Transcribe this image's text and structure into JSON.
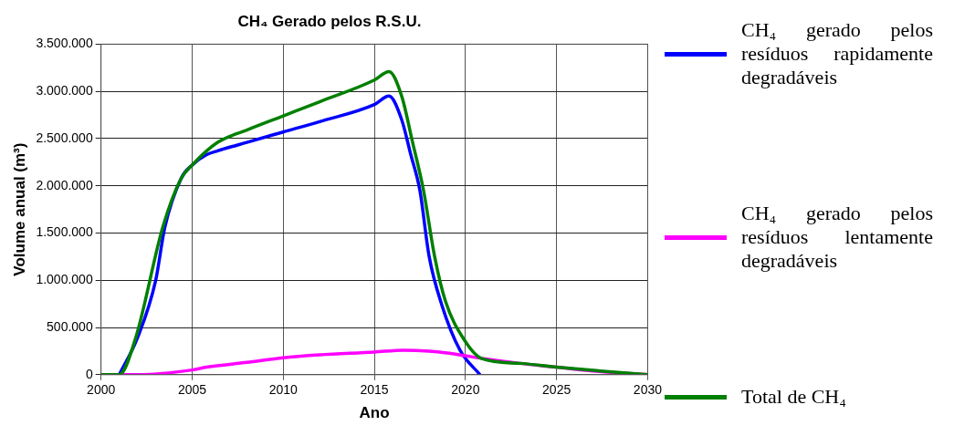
{
  "chart_data": {
    "type": "line",
    "title": "CH₄ Gerado pelos R.S.U.",
    "xlabel": "Ano",
    "ylabel": "Volume anual (m³)",
    "xlim": [
      2000,
      2030
    ],
    "xticks": [
      2000,
      2005,
      2010,
      2015,
      2020,
      2025,
      2030
    ],
    "ylim": [
      0,
      3500000
    ],
    "yticks": [
      {
        "value": 0,
        "label": "0"
      },
      {
        "value": 500000,
        "label": "500.000"
      },
      {
        "value": 1000000,
        "label": "1.000.000"
      },
      {
        "value": 1500000,
        "label": "1.500.000"
      },
      {
        "value": 2000000,
        "label": "2.000.000"
      },
      {
        "value": 2500000,
        "label": "2.500.000"
      },
      {
        "value": 3000000,
        "label": "3.000.000"
      },
      {
        "value": 3500000,
        "label": "3.500.000"
      }
    ],
    "grid": true,
    "legend": "right",
    "marker": "none",
    "line_style": "solid",
    "series": [
      {
        "name": "CH₄ gerado pelos resíduos rapidamente degradáveis",
        "color": "#0000ff",
        "x": [
          2001,
          2002,
          2003,
          2003.5,
          2004.4,
          2005,
          2005.8,
          2006.4,
          2008,
          2010,
          2012,
          2015,
          2015.8,
          2016.5,
          2017,
          2017.5,
          2018,
          2018.7,
          2019.7,
          2020.8
        ],
        "values": [
          0,
          390000,
          1000000,
          1560000,
          2080000,
          2220000,
          2330000,
          2370000,
          2460000,
          2570000,
          2680000,
          2860000,
          2950000,
          2700000,
          2330000,
          1950000,
          1260000,
          740000,
          260000,
          0
        ]
      },
      {
        "name": "CH₄ gerado pelos resíduos lentamente degradáveis",
        "color": "#ff00ff",
        "x": [
          2000,
          2002,
          2005,
          2005.8,
          2008,
          2010,
          2012,
          2015,
          2016.6,
          2018,
          2019,
          2020,
          2021,
          2023,
          2025,
          2027,
          2030
        ],
        "values": [
          0,
          0,
          50000,
          80000,
          130000,
          180000,
          210000,
          240000,
          260000,
          250000,
          230000,
          200000,
          170000,
          120000,
          80000,
          40000,
          0
        ]
      },
      {
        "name": "Total de CH₄",
        "color": "#008000",
        "x": [
          2000,
          2001,
          2001.9,
          2003.4,
          2004.4,
          2005,
          2006.4,
          2008,
          2010,
          2012,
          2015,
          2015.8,
          2016.5,
          2017.1,
          2017.7,
          2018.3,
          2018.9,
          2019.9,
          2020.9,
          2023,
          2025,
          2027.4,
          2030
        ],
        "values": [
          0,
          0,
          390000,
          1570000,
          2080000,
          2220000,
          2460000,
          2590000,
          2740000,
          2890000,
          3120000,
          3210000,
          2950000,
          2460000,
          1950000,
          1260000,
          780000,
          380000,
          170000,
          120000,
          80000,
          40000,
          0
        ]
      }
    ]
  }
}
